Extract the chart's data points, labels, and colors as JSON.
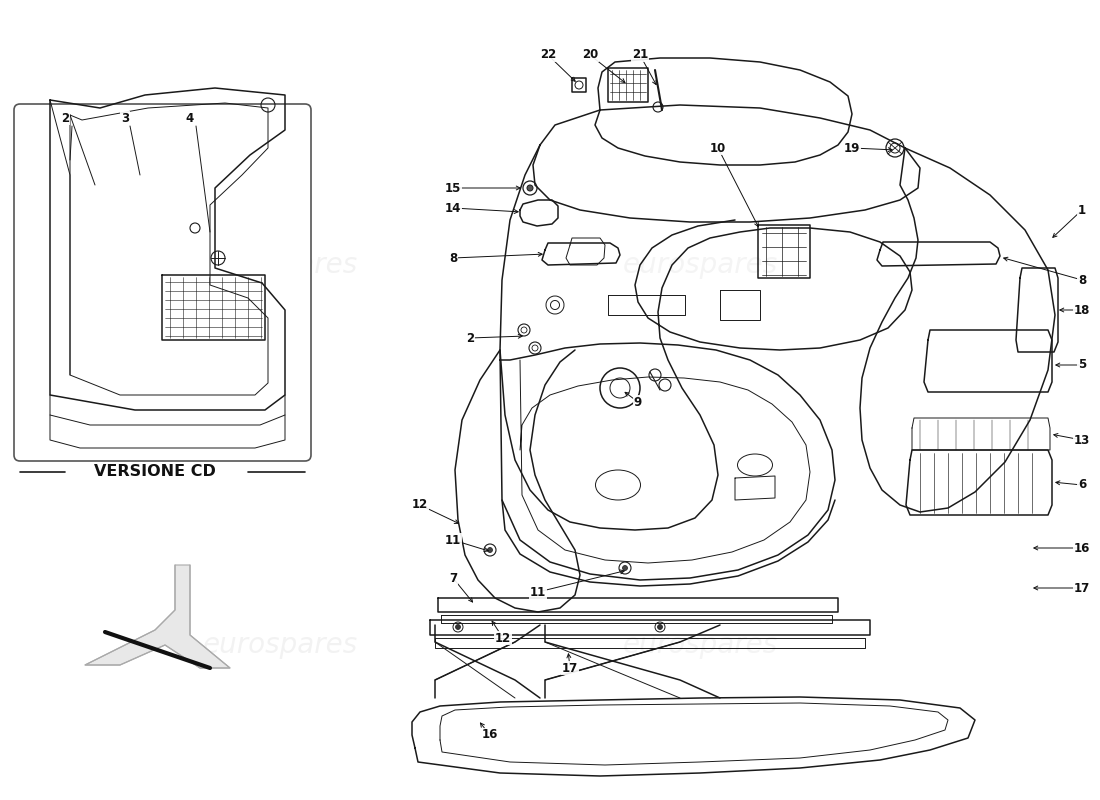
{
  "bg_color": "#ffffff",
  "line_color": "#1a1a1a",
  "watermark_color": "#cccccc",
  "fig_w": 11.0,
  "fig_h": 8.0,
  "dpi": 100,
  "versione_cd_text": "VERSIONE CD"
}
